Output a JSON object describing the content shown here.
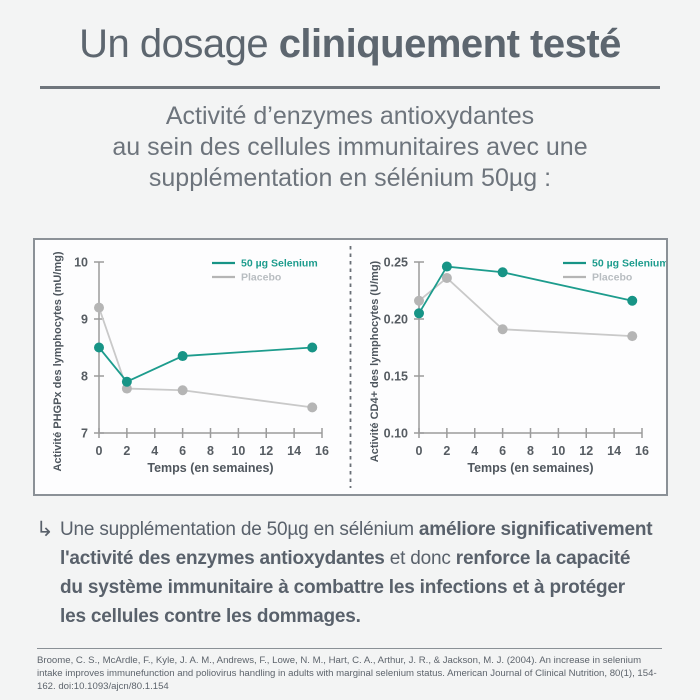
{
  "page": {
    "background": "#f3f4f4",
    "accent_teal": "#1d9c8d",
    "text_gray": "#5d666f"
  },
  "title": {
    "segments": [
      {
        "text": "Un dosage ",
        "bold": false
      },
      {
        "text": "cliniquement testé",
        "bold": true
      }
    ]
  },
  "subtitle": {
    "lines": [
      "Activité d’enzymes antioxydantes",
      "au sein des cellules immunitaires avec une",
      "supplémentation en sélénium 50µg :"
    ]
  },
  "chart_data": [
    {
      "type": "line",
      "title": "",
      "ylabel": "Activité PHGPx des lymphocytes (mU/mg)",
      "xlabel": "Temps (en semaines)",
      "ylim": [
        7,
        10
      ],
      "yticks": [
        7,
        8,
        9,
        10
      ],
      "ytick_labels": [
        "7",
        "8",
        "9",
        "10"
      ],
      "xlim": [
        0,
        16
      ],
      "xticks": [
        0,
        2,
        4,
        6,
        8,
        10,
        12,
        14,
        16
      ],
      "grid": false,
      "legend_position": "top-right",
      "series": [
        {
          "name": "50 µg Selenium",
          "line_color": "#1d9c8d",
          "marker_color": "#179486",
          "legend_color": "#1d9c8d",
          "x": [
            0,
            2,
            6,
            15.3
          ],
          "y": [
            8.5,
            7.9,
            8.35,
            8.5
          ]
        },
        {
          "name": "Placebo",
          "line_color": "#c9c9c9",
          "marker_color": "#b5b5b5",
          "legend_color": "#b8bdc1",
          "x": [
            0,
            2,
            6,
            15.3
          ],
          "y": [
            9.2,
            7.78,
            7.75,
            7.45
          ]
        }
      ]
    },
    {
      "type": "line",
      "title": "",
      "ylabel": "Activité CD4+ des lymphocytes (U/mg)",
      "xlabel": "Temps (en semaines)",
      "ylim": [
        0.1,
        0.25
      ],
      "yticks": [
        0.1,
        0.15,
        0.2,
        0.25
      ],
      "ytick_labels": [
        "0.10",
        "0.15",
        "0.20",
        "0.25"
      ],
      "xlim": [
        0,
        16
      ],
      "xticks": [
        0,
        2,
        4,
        6,
        8,
        10,
        12,
        14,
        16
      ],
      "grid": false,
      "legend_position": "top-right",
      "series": [
        {
          "name": "50 µg Selenium",
          "line_color": "#1d9c8d",
          "marker_color": "#179486",
          "legend_color": "#1d9c8d",
          "x": [
            0,
            2,
            6,
            15.3
          ],
          "y": [
            0.205,
            0.246,
            0.241,
            0.216
          ]
        },
        {
          "name": "Placebo",
          "line_color": "#c9c9c9",
          "marker_color": "#b5b5b5",
          "legend_color": "#b8bdc1",
          "x": [
            0,
            2,
            6,
            15.3
          ],
          "y": [
            0.216,
            0.236,
            0.191,
            0.185
          ]
        }
      ]
    }
  ],
  "conclusion": {
    "arrow": "↳",
    "lines": [
      [
        {
          "text": "Une supplémentation de 50µg en sélénium ",
          "bold": false
        },
        {
          "text": "améliore significativement",
          "bold": true
        }
      ],
      [
        {
          "text": "l'activité des enzymes antioxydantes",
          "bold": true
        },
        {
          "text": " et donc ",
          "bold": false
        },
        {
          "text": "renforce la capacité",
          "bold": true
        }
      ],
      [
        {
          "text": "du système immunitaire à combattre les infections et à protéger",
          "bold": true
        }
      ],
      [
        {
          "text": "les cellules contre les dommages.",
          "bold": true
        }
      ]
    ]
  },
  "citation": {
    "text": "Broome, C. S., McArdle, F., Kyle, J. A. M., Andrews, F., Lowe, N. M., Hart, C. A., Arthur, J. R., & Jackson, M. J. (2004). An increase in selenium intake improves immunefunction and poliovirus handling in adults with marginal selenium status. American Journal of Clinical Nutrition, 80(1), 154-162. doi:10.1093/ajcn/80.1.154"
  }
}
